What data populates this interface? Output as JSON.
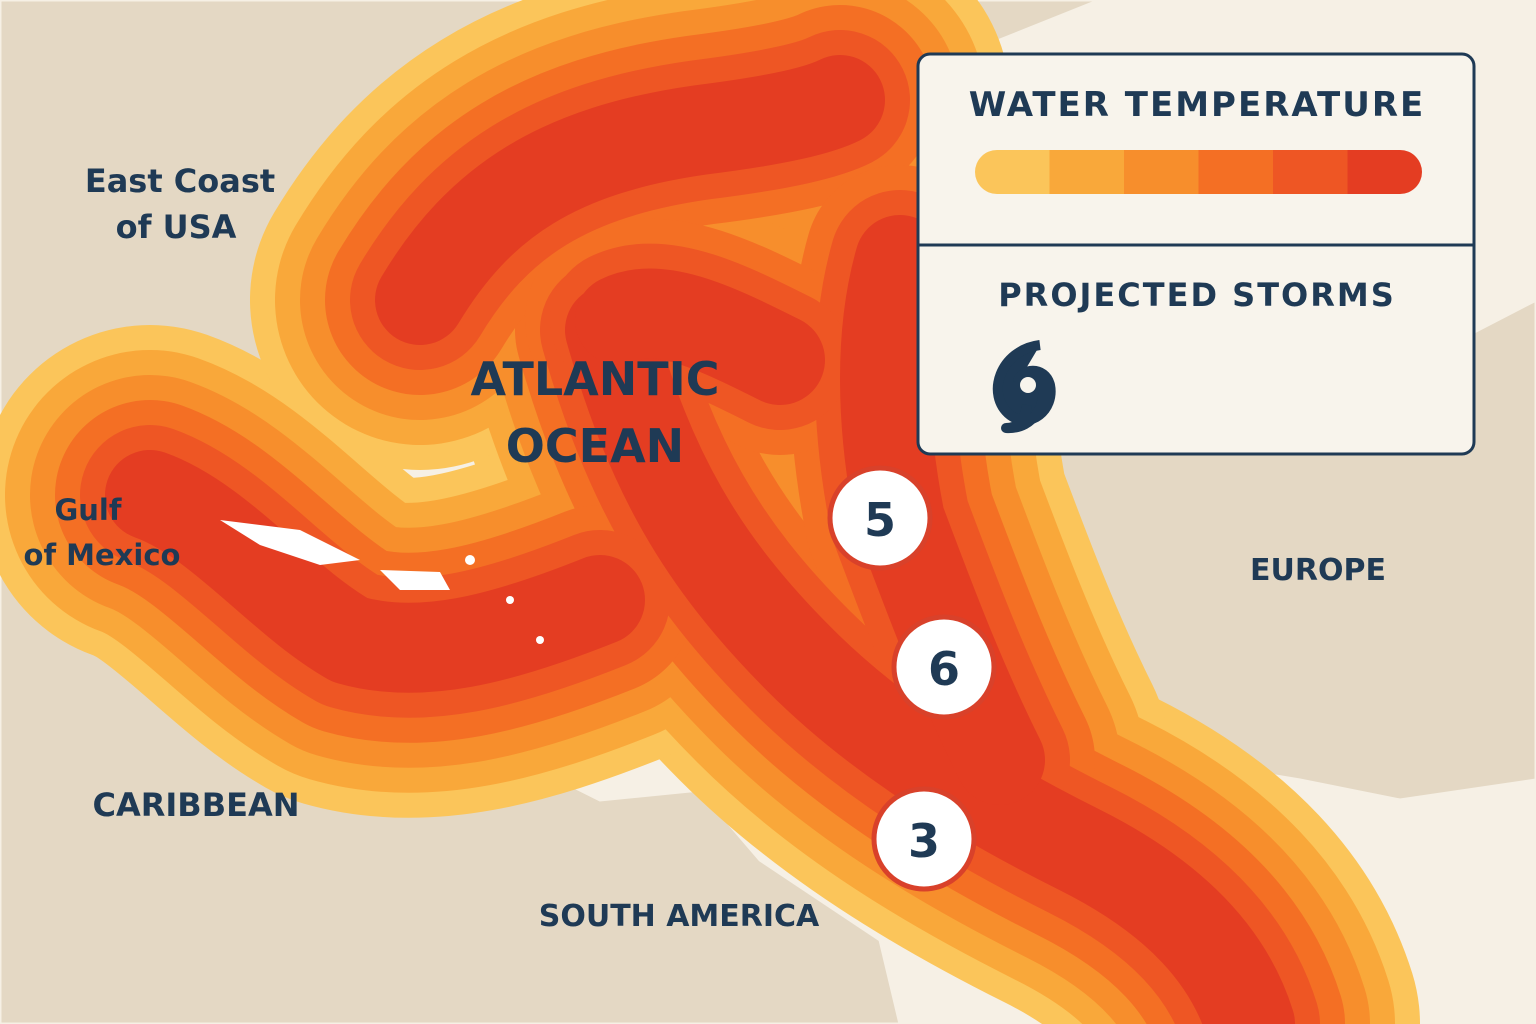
{
  "labels": {
    "east_coast": [
      "East Coast",
      "of USA"
    ],
    "gulf": [
      "Gulf",
      "of Mexico"
    ],
    "caribbean": "CARIBBEAN",
    "south_america": "SOUTH AMERICA",
    "europe": "EUROPE",
    "ocean": [
      "ATLANTIC",
      "OCEAN"
    ]
  },
  "legend": {
    "water_temperature": "WATER TEMPERATURE",
    "projected_storms": "PROJECTED STORMS",
    "colors": [
      "#fbc55a",
      "#f9a83a",
      "#f78e2c",
      "#f46f24",
      "#ee5624",
      "#e43d22"
    ]
  },
  "storms": [
    5,
    6,
    3
  ]
}
